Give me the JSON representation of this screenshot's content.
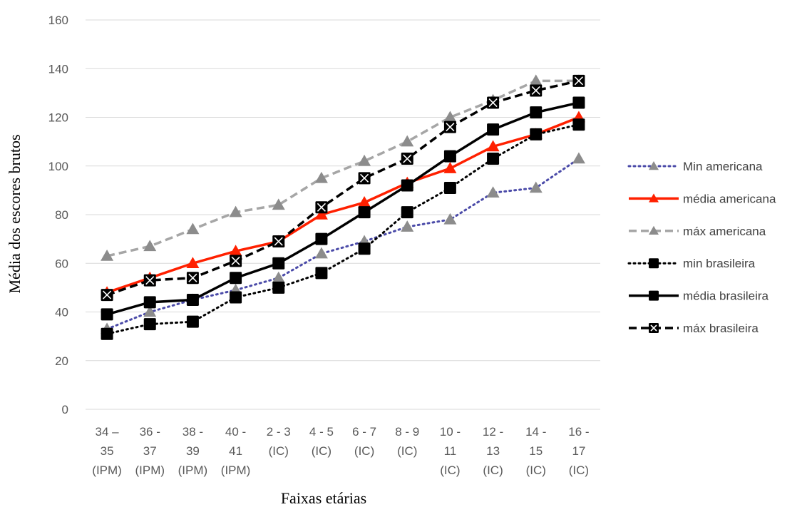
{
  "chart_data": {
    "type": "line",
    "xlabel": "Faixas etárias",
    "ylabel": "Média dos escores brutos",
    "ylim": [
      0,
      160
    ],
    "yticks": [
      0,
      20,
      40,
      60,
      80,
      100,
      120,
      140,
      160
    ],
    "grid": true,
    "legend_position": "right",
    "categories": [
      [
        "34 –",
        "35",
        "(IPM)"
      ],
      [
        "36 -",
        "37",
        "(IPM)"
      ],
      [
        "38 -",
        "39",
        "(IPM)"
      ],
      [
        "40 -",
        "41",
        "(IPM)"
      ],
      [
        "2 - 3",
        "(IC)"
      ],
      [
        "4 - 5",
        "(IC)"
      ],
      [
        "6 - 7",
        "(IC)"
      ],
      [
        "8 - 9",
        "(IC)"
      ],
      [
        "10 -",
        "11",
        "(IC)"
      ],
      [
        "12 -",
        "13",
        "(IC)"
      ],
      [
        "14 -",
        "15",
        "(IC)"
      ],
      [
        "16 -",
        "17",
        "(IC)"
      ]
    ],
    "series": [
      {
        "name": "Min americana",
        "color": "#4a4aa8",
        "dash": "dot",
        "marker": "triangle",
        "markerColor": "#8c8c8c",
        "values": [
          33,
          40,
          45,
          49,
          54,
          64,
          69,
          75,
          78,
          89,
          91,
          103
        ]
      },
      {
        "name": "média americana",
        "color": "#ff2000",
        "dash": "solid",
        "marker": "triangle",
        "markerColor": "#ff2000",
        "values": [
          48,
          54,
          60,
          65,
          69,
          80,
          85,
          93,
          99,
          108,
          113,
          120
        ]
      },
      {
        "name": "máx americana",
        "color": "#a6a6a6",
        "dash": "dash",
        "marker": "triangle",
        "markerColor": "#8c8c8c",
        "values": [
          63,
          67,
          74,
          81,
          84,
          95,
          102,
          110,
          120,
          127,
          135,
          135
        ]
      },
      {
        "name": "min brasileira",
        "color": "#000000",
        "dash": "dot",
        "marker": "square",
        "markerColor": "#000000",
        "values": [
          31,
          35,
          36,
          46,
          50,
          56,
          66,
          81,
          91,
          103,
          113,
          117
        ]
      },
      {
        "name": "média brasileira",
        "color": "#000000",
        "dash": "solid",
        "marker": "square",
        "markerColor": "#000000",
        "values": [
          39,
          44,
          45,
          54,
          60,
          70,
          81,
          92,
          104,
          115,
          122,
          126
        ]
      },
      {
        "name": "máx brasileira",
        "color": "#000000",
        "dash": "dash",
        "marker": "x",
        "markerColor": "#000000",
        "values": [
          47,
          53,
          54,
          61,
          69,
          83,
          95,
          103,
          116,
          126,
          131,
          135
        ]
      }
    ]
  }
}
